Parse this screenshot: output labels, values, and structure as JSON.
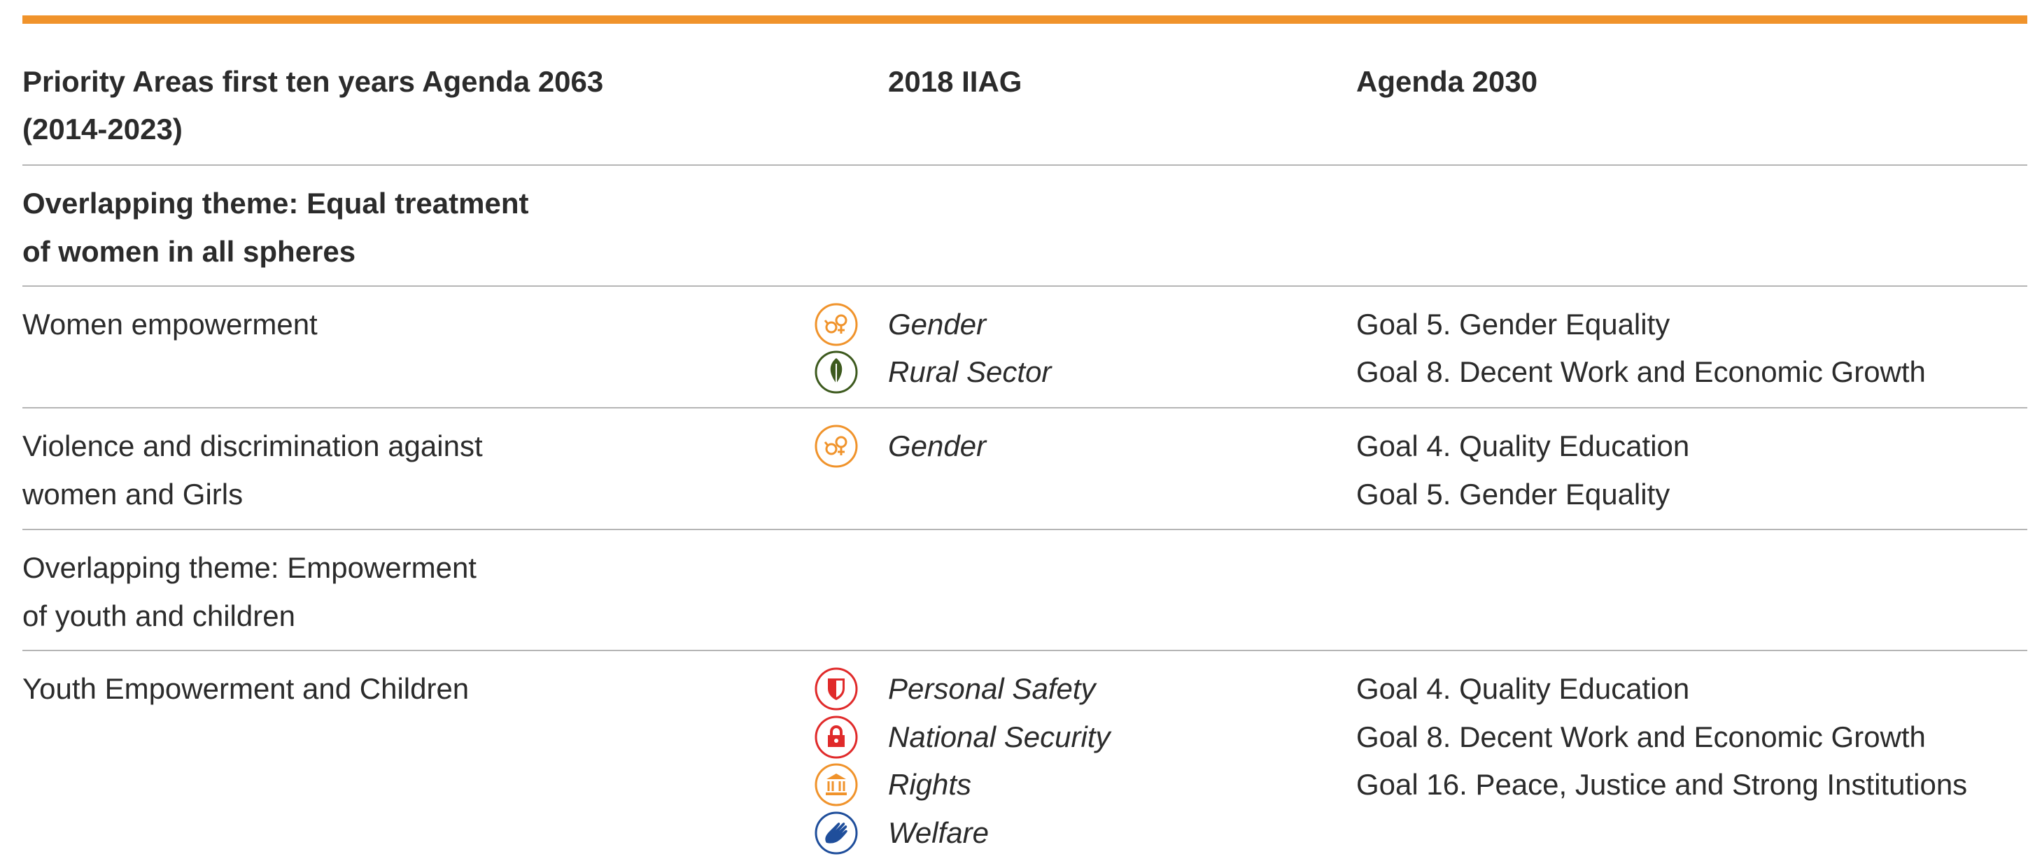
{
  "header": {
    "columns": [
      [
        "Priority Areas first ten years Agenda 2063",
        "(2014-2023)"
      ],
      [
        "2018 IIAG"
      ],
      [
        "Agenda 2030"
      ]
    ]
  },
  "rows": [
    {
      "label": [
        "Overlapping theme: Equal treatment",
        "of women in all spheres"
      ]
    },
    {
      "label": [
        "Women empowerment"
      ],
      "iiag": [
        "Gender",
        "Rural Sector"
      ],
      "agenda": [
        "Goal 5. Gender Equality",
        "Goal 8. Decent Work and Economic Growth"
      ]
    },
    {
      "label": [
        "Violence and discrimination against",
        "women and Girls"
      ],
      "iiag": [
        "Gender"
      ],
      "agenda": [
        "Goal 4. Quality Education",
        "Goal 5. Gender Equality"
      ]
    },
    {
      "label": [
        "Overlapping theme: Empowerment",
        "of youth and children"
      ]
    },
    {
      "label": [
        "Youth Empowerment and Children"
      ],
      "iiag": [
        "Personal Safety",
        "National Security",
        "Rights",
        "Welfare"
      ],
      "agenda": [
        "Goal 4. Quality Education",
        "Goal 8. Decent Work and Economic Growth",
        "Goal 16. Peace, Justice and Strong Institutions"
      ]
    }
  ]
}
